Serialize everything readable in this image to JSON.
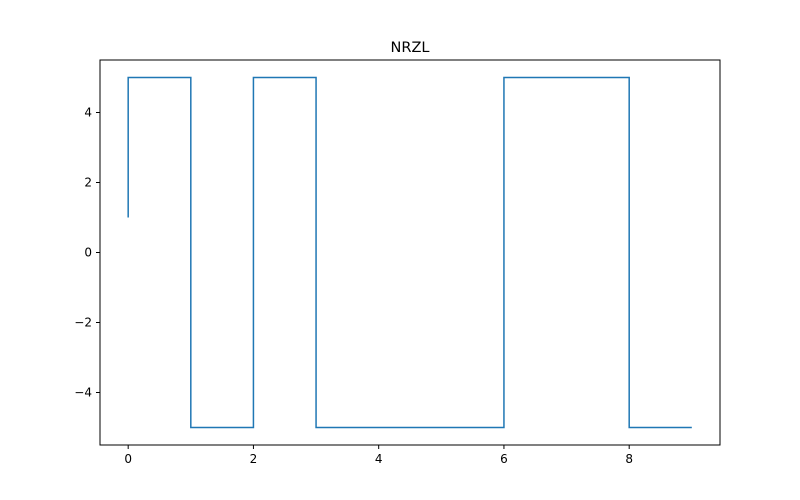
{
  "chart_data": {
    "type": "line",
    "title": "NRZL",
    "xlabel": "",
    "ylabel": "",
    "xlim": [
      -0.45,
      9.45
    ],
    "ylim": [
      -5.5,
      5.5
    ],
    "xticks": [
      0,
      2,
      4,
      6,
      8
    ],
    "yticks": [
      -4,
      -2,
      0,
      2,
      4
    ],
    "xtick_labels": [
      "0",
      "2",
      "4",
      "6",
      "8"
    ],
    "ytick_labels": [
      "−4",
      "−2",
      "0",
      "2",
      "4"
    ],
    "grid": false,
    "line_color": "#1f77b4",
    "series": [
      {
        "x": [
          0,
          0,
          1,
          1,
          2,
          2,
          3,
          3,
          6,
          6,
          8,
          8,
          9
        ],
        "y": [
          1,
          5,
          5,
          -5,
          -5,
          5,
          5,
          -5,
          -5,
          5,
          5,
          -5,
          -5
        ]
      }
    ]
  }
}
